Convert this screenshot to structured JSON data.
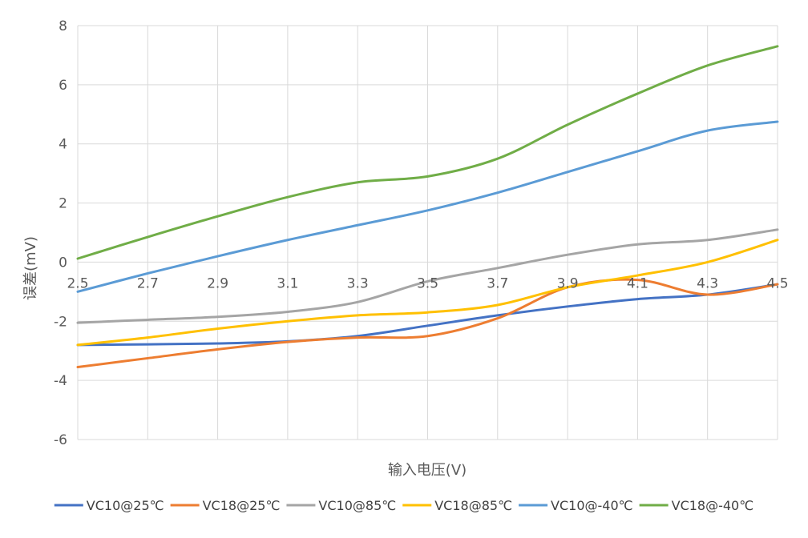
{
  "chart_data": {
    "type": "line",
    "title": "",
    "xlabel": "输入电压(V)",
    "ylabel": "误差(mV)",
    "xlim": [
      2.5,
      4.5
    ],
    "ylim": [
      -6,
      8
    ],
    "x_ticks": [
      "2.5",
      "2.7",
      "2.9",
      "3.1",
      "3.3",
      "3.5",
      "3.7",
      "3.9",
      "4.1",
      "4.3",
      "4.5"
    ],
    "y_ticks": [
      "-6",
      "-4",
      "-2",
      "0",
      "2",
      "4",
      "6",
      "8"
    ],
    "grid": true,
    "legend_position": "bottom",
    "x": [
      2.5,
      2.7,
      2.9,
      3.1,
      3.3,
      3.5,
      3.7,
      3.9,
      4.1,
      4.3,
      4.5
    ],
    "series": [
      {
        "name": "VC10@25℃",
        "color": "#4472c4",
        "values": [
          -2.8,
          -2.78,
          -2.75,
          -2.68,
          -2.5,
          -2.15,
          -1.8,
          -1.5,
          -1.25,
          -1.1,
          -0.75
        ]
      },
      {
        "name": "VC18@25℃",
        "color": "#ed7d31",
        "values": [
          -3.55,
          -3.25,
          -2.95,
          -2.7,
          -2.55,
          -2.5,
          -1.9,
          -0.85,
          -0.6,
          -1.1,
          -0.75
        ]
      },
      {
        "name": "VC10@85℃",
        "color": "#a5a5a5",
        "values": [
          -2.05,
          -1.95,
          -1.85,
          -1.68,
          -1.35,
          -0.65,
          -0.2,
          0.25,
          0.6,
          0.75,
          1.1
        ]
      },
      {
        "name": "VC18@85℃",
        "color": "#ffc000",
        "values": [
          -2.8,
          -2.55,
          -2.25,
          -2.0,
          -1.8,
          -1.7,
          -1.45,
          -0.85,
          -0.45,
          0.0,
          0.75
        ]
      },
      {
        "name": "VC10@-40℃",
        "color": "#5b9bd5",
        "values": [
          -1.0,
          -0.38,
          0.2,
          0.75,
          1.25,
          1.75,
          2.35,
          3.05,
          3.75,
          4.45,
          4.75
        ]
      },
      {
        "name": "VC18@-40℃",
        "color": "#70ad47",
        "values": [
          0.12,
          0.85,
          1.55,
          2.2,
          2.7,
          2.9,
          3.5,
          4.65,
          5.7,
          6.65,
          7.3
        ]
      }
    ]
  }
}
